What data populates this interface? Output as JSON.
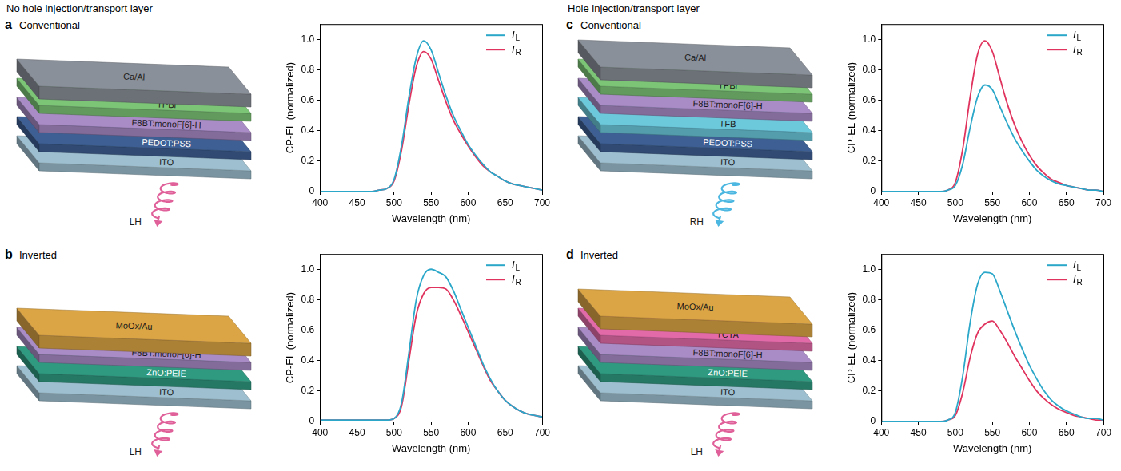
{
  "headings": [
    "No hole injection/transport layer",
    "Hole injection/transport layer"
  ],
  "panels": [
    {
      "letter": "a",
      "title": "Conventional",
      "layers": [
        {
          "name": "ITO",
          "color": "#9dbfcf"
        },
        {
          "name": "PEDOT:PSS",
          "color": "#3d5f93"
        },
        {
          "name": "F8BT:monoF[6]-H",
          "color": "#a98bc6"
        },
        {
          "name": "TPBi",
          "color": "#7cc576"
        },
        {
          "name": "Ca/Al",
          "color": "#8a9099"
        }
      ],
      "emission": {
        "label": "LH",
        "color": "#e0609a"
      }
    },
    {
      "letter": "b",
      "title": "Inverted",
      "layers": [
        {
          "name": "ITO",
          "color": "#9dbfcf"
        },
        {
          "name": "ZnO:PEIE",
          "color": "#2f9a80"
        },
        {
          "name": "F8BT:monoF[6]-H",
          "color": "#a98bc6"
        },
        {
          "name": "MoOx/Au",
          "color": "#dba545"
        }
      ],
      "emission": {
        "label": "LH",
        "color": "#e0609a"
      }
    },
    {
      "letter": "c",
      "title": "Conventional",
      "layers": [
        {
          "name": "ITO",
          "color": "#9dbfcf"
        },
        {
          "name": "PEDOT:PSS",
          "color": "#3d5f93"
        },
        {
          "name": "TFB",
          "color": "#6cc9dc"
        },
        {
          "name": "F8BT:monoF[6]-H",
          "color": "#a98bc6"
        },
        {
          "name": "TPBi",
          "color": "#7cc576"
        },
        {
          "name": "Ca/Al",
          "color": "#8a9099"
        }
      ],
      "emission": {
        "label": "RH",
        "color": "#4cb7e0"
      }
    },
    {
      "letter": "d",
      "title": "Inverted",
      "layers": [
        {
          "name": "ITO",
          "color": "#9dbfcf"
        },
        {
          "name": "ZnO:PEIE",
          "color": "#2f9a80"
        },
        {
          "name": "F8BT:monoF[6]-H",
          "color": "#a98bc6"
        },
        {
          "name": "TCTA",
          "color": "#e36aa8"
        },
        {
          "name": "MoOx/Au",
          "color": "#dba545"
        }
      ],
      "emission": {
        "label": "LH",
        "color": "#e0609a"
      }
    }
  ],
  "chart_data": [
    {
      "type": "line",
      "x_label": "Wavelength (nm)",
      "y_label": "CP-EL (normalized)",
      "x": [
        400,
        410,
        420,
        430,
        440,
        450,
        460,
        470,
        480,
        490,
        500,
        510,
        520,
        530,
        540,
        550,
        560,
        570,
        580,
        590,
        600,
        610,
        620,
        630,
        640,
        650,
        660,
        670,
        680,
        690,
        700
      ],
      "series": [
        {
          "name": "IL",
          "color": "#2aa7c9",
          "values": [
            0,
            0,
            0,
            0,
            0,
            0,
            0,
            0,
            0.01,
            0.02,
            0.08,
            0.3,
            0.62,
            0.88,
            0.99,
            0.93,
            0.78,
            0.63,
            0.5,
            0.4,
            0.31,
            0.24,
            0.18,
            0.13,
            0.1,
            0.07,
            0.05,
            0.04,
            0.03,
            0.02,
            0.01
          ]
        },
        {
          "name": "IR",
          "color": "#e0335e",
          "values": [
            0,
            0,
            0,
            0,
            0,
            0,
            0,
            0,
            0.01,
            0.02,
            0.07,
            0.27,
            0.57,
            0.82,
            0.92,
            0.87,
            0.73,
            0.59,
            0.47,
            0.38,
            0.3,
            0.23,
            0.17,
            0.13,
            0.1,
            0.07,
            0.05,
            0.04,
            0.03,
            0.02,
            0.01
          ]
        }
      ],
      "xlim": [
        400,
        700
      ],
      "xticks": [
        400,
        450,
        500,
        550,
        600,
        650,
        700
      ],
      "ylim": [
        0,
        1.1
      ],
      "yticks": [
        0,
        0.2,
        0.4,
        0.6,
        0.8,
        {
          "value": 1,
          "label": "1.0"
        }
      ],
      "grid": false,
      "legend": "upper right"
    },
    {
      "type": "line",
      "x_label": "Wavelength (nm)",
      "y_label": "CP-EL (normalized)",
      "x": [
        400,
        410,
        420,
        430,
        440,
        450,
        460,
        470,
        480,
        490,
        500,
        510,
        520,
        530,
        540,
        550,
        560,
        570,
        580,
        590,
        600,
        610,
        620,
        630,
        640,
        650,
        660,
        670,
        680,
        690,
        700
      ],
      "series": [
        {
          "name": "IL",
          "color": "#2aa7c9",
          "values": [
            0.01,
            0.01,
            0.01,
            0.01,
            0.01,
            0.01,
            0.01,
            0.01,
            0.01,
            0.01,
            0.02,
            0.12,
            0.45,
            0.8,
            0.96,
            1.0,
            0.98,
            0.95,
            0.86,
            0.74,
            0.62,
            0.5,
            0.38,
            0.28,
            0.2,
            0.14,
            0.1,
            0.07,
            0.05,
            0.04,
            0.03
          ]
        },
        {
          "name": "IR",
          "color": "#e0335e",
          "values": [
            0.01,
            0.01,
            0.01,
            0.01,
            0.01,
            0.01,
            0.01,
            0.01,
            0.01,
            0.01,
            0.02,
            0.1,
            0.4,
            0.7,
            0.84,
            0.88,
            0.88,
            0.87,
            0.8,
            0.7,
            0.59,
            0.48,
            0.37,
            0.27,
            0.2,
            0.14,
            0.1,
            0.07,
            0.05,
            0.04,
            0.03
          ]
        }
      ],
      "xlim": [
        400,
        700
      ],
      "xticks": [
        400,
        450,
        500,
        550,
        600,
        650,
        700
      ],
      "ylim": [
        0,
        1.1
      ],
      "yticks": [
        0,
        0.2,
        0.4,
        0.6,
        0.8,
        {
          "value": 1,
          "label": "1.0"
        }
      ],
      "grid": false,
      "legend": "upper right"
    },
    {
      "type": "line",
      "x_label": "Wavelength (nm)",
      "y_label": "CP-EL (normalized)",
      "x": [
        400,
        410,
        420,
        430,
        440,
        450,
        460,
        470,
        480,
        490,
        500,
        510,
        520,
        530,
        540,
        550,
        560,
        570,
        580,
        590,
        600,
        610,
        620,
        630,
        640,
        650,
        660,
        670,
        680,
        690,
        700
      ],
      "series": [
        {
          "name": "IL",
          "color": "#2aa7c9",
          "values": [
            0,
            0,
            0,
            0,
            0,
            0,
            0,
            0,
            0,
            0.01,
            0.04,
            0.18,
            0.42,
            0.62,
            0.7,
            0.67,
            0.56,
            0.45,
            0.35,
            0.27,
            0.2,
            0.14,
            0.1,
            0.07,
            0.05,
            0.04,
            0.03,
            0.02,
            0.01,
            0.01,
            0
          ]
        },
        {
          "name": "IR",
          "color": "#e0335e",
          "values": [
            0,
            0,
            0,
            0,
            0,
            0,
            0,
            0,
            0,
            0.01,
            0.06,
            0.28,
            0.62,
            0.9,
            0.99,
            0.92,
            0.75,
            0.58,
            0.44,
            0.33,
            0.24,
            0.17,
            0.12,
            0.08,
            0.06,
            0.04,
            0.03,
            0.02,
            0.01,
            0.01,
            0
          ]
        }
      ],
      "xlim": [
        400,
        700
      ],
      "xticks": [
        400,
        450,
        500,
        550,
        600,
        650,
        700
      ],
      "ylim": [
        0,
        1.1
      ],
      "yticks": [
        0,
        0.2,
        0.4,
        0.6,
        0.8,
        {
          "value": 1,
          "label": "1.0"
        }
      ],
      "grid": false,
      "legend": "upper right"
    },
    {
      "type": "line",
      "x_label": "Wavelength (nm)",
      "y_label": "CP-EL (normalized)",
      "x": [
        400,
        410,
        420,
        430,
        440,
        450,
        460,
        470,
        480,
        490,
        500,
        510,
        520,
        530,
        540,
        550,
        560,
        570,
        580,
        590,
        600,
        610,
        620,
        630,
        640,
        650,
        660,
        670,
        680,
        690,
        700
      ],
      "series": [
        {
          "name": "IL",
          "color": "#2aa7c9",
          "values": [
            0,
            0,
            0,
            0,
            0,
            0,
            0,
            0,
            0,
            0.01,
            0.06,
            0.3,
            0.65,
            0.9,
            0.98,
            0.97,
            0.86,
            0.73,
            0.6,
            0.48,
            0.37,
            0.28,
            0.2,
            0.14,
            0.1,
            0.07,
            0.05,
            0.03,
            0.02,
            0.02,
            0.01
          ]
        },
        {
          "name": "IR",
          "color": "#e0335e",
          "values": [
            0,
            0,
            0,
            0,
            0,
            0,
            0,
            0,
            0,
            0.01,
            0.04,
            0.19,
            0.42,
            0.58,
            0.64,
            0.66,
            0.6,
            0.52,
            0.43,
            0.35,
            0.27,
            0.2,
            0.15,
            0.11,
            0.08,
            0.06,
            0.04,
            0.03,
            0.02,
            0.01,
            0.01
          ]
        }
      ],
      "xlim": [
        400,
        700
      ],
      "xticks": [
        400,
        450,
        500,
        550,
        600,
        650,
        700
      ],
      "ylim": [
        0,
        1.1
      ],
      "yticks": [
        0,
        0.2,
        0.4,
        0.6,
        0.8,
        {
          "value": 1,
          "label": "1.0"
        }
      ],
      "grid": false,
      "legend": "upper right"
    }
  ]
}
